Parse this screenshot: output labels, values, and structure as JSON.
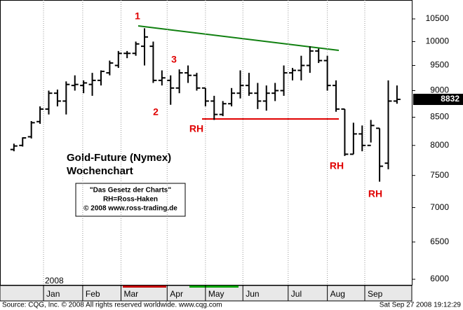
{
  "chart_data": {
    "type": "ohlc",
    "title": "Gold-Future (Nymex)",
    "subtitle": "Wochenchart",
    "year_label": "2008",
    "credit_box": [
      "\"Das Gesetz der Charts\"",
      "RH=Ross-Haken",
      "© 2008 www.ross-trading.de"
    ],
    "annotations": [
      "1",
      "2",
      "3",
      "RH",
      "RH",
      "RH"
    ],
    "source": "Source: CQG, Inc. © 2008 All rights reserved worldwide. www.cqg.com",
    "timestamp": "Sat Sep 27 2008 19:12:29",
    "last_price": 8832,
    "color": "#000000",
    "log_scale": true,
    "ylim": [
      5920,
      10935
    ],
    "yticks": [
      6000,
      6500,
      7000,
      7500,
      8000,
      8500,
      9000,
      9500,
      10000,
      10500
    ],
    "xlim": [
      -1.6,
      45.7
    ],
    "xticks": [
      {
        "value": 3.4,
        "label": "Jan"
      },
      {
        "value": 7.9,
        "label": "Feb"
      },
      {
        "value": 12.3,
        "label": "Mar"
      },
      {
        "value": 17.6,
        "label": "Apr"
      },
      {
        "value": 22,
        "label": "May"
      },
      {
        "value": 26.3,
        "label": "Jun"
      },
      {
        "value": 31.5,
        "label": "Jul"
      },
      {
        "value": 36,
        "label": "Aug"
      },
      {
        "value": 40.3,
        "label": "Sep"
      }
    ],
    "open": [
      7930,
      8000,
      8150,
      8420,
      8650,
      8950,
      8800,
      9100,
      9100,
      9120,
      9200,
      9350,
      9500,
      9750,
      9750,
      9900,
      9900,
      9200,
      9200,
      9050,
      9350,
      9300,
      9050,
      8800,
      8550,
      8750,
      8950,
      9100,
      8950,
      8800,
      8950,
      9000,
      9350,
      9400,
      9500,
      9800,
      9600,
      9100,
      8650,
      7850,
      8200,
      8000,
      8300,
      7700,
      8800
    ],
    "high": [
      8030,
      8140,
      8430,
      8700,
      9000,
      9020,
      9180,
      9300,
      9200,
      9350,
      9400,
      9600,
      9800,
      9800,
      10000,
      10290,
      10000,
      9400,
      9300,
      9420,
      9500,
      9350,
      9050,
      8900,
      8800,
      9050,
      9400,
      9350,
      9150,
      9100,
      9150,
      9500,
      9450,
      9700,
      9900,
      9850,
      9700,
      9200,
      8650,
      8400,
      8350,
      8450,
      8300,
      9200,
      9100
    ],
    "low": [
      7900,
      7980,
      8120,
      8380,
      8550,
      8700,
      8550,
      9000,
      8950,
      8900,
      9100,
      9300,
      9450,
      9650,
      9700,
      9500,
      9150,
      9100,
      8730,
      8950,
      9150,
      9000,
      8700,
      8450,
      8520,
      8700,
      8850,
      8900,
      8650,
      8620,
      8800,
      8900,
      9200,
      9200,
      9350,
      9550,
      9000,
      8600,
      7820,
      7850,
      7900,
      8050,
      7400,
      7600,
      8750
    ],
    "close": [
      7990,
      8130,
      8400,
      8650,
      8950,
      8800,
      9120,
      9120,
      9150,
      9200,
      9380,
      9550,
      9750,
      9750,
      9950,
      10100,
      9200,
      9250,
      9050,
      9350,
      9300,
      9050,
      8800,
      8550,
      8750,
      8950,
      9100,
      8950,
      8800,
      8950,
      9000,
      9350,
      9400,
      9500,
      9800,
      9600,
      9100,
      8650,
      7850,
      8200,
      8000,
      8350,
      7650,
      8800,
      8832
    ]
  }
}
